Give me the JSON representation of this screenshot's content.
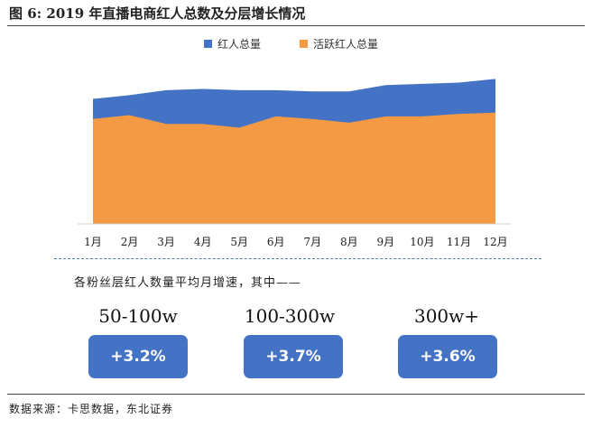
{
  "title": "图 6:  2019 年直播电商红人总数及分层增长情况",
  "chart_data": {
    "type": "area",
    "categories": [
      "1月",
      "2月",
      "3月",
      "4月",
      "5月",
      "6月",
      "7月",
      "8月",
      "9月",
      "10月",
      "11月",
      "12月"
    ],
    "series": [
      {
        "name": "红人总量",
        "color": "#4472c4",
        "values": [
          100,
          103,
          107,
          108,
          107,
          107,
          106,
          106,
          111,
          112,
          113,
          116
        ]
      },
      {
        "name": "活跃红人总量",
        "color": "#f59a44",
        "values": [
          84,
          87,
          80,
          80,
          77,
          86,
          84,
          81,
          86,
          86,
          88,
          89
        ]
      }
    ],
    "ylim": [
      0,
      130
    ],
    "legend": "top-center",
    "grid": false
  },
  "growth_note": "各粉丝层红人数量平均月增速，其中——",
  "tiers": [
    {
      "label": "50-100w",
      "value": "+3.2%"
    },
    {
      "label": "100-300w",
      "value": "+3.7%"
    },
    {
      "label": "300w+",
      "value": "+3.6%"
    }
  ],
  "source": "数据来源：卡思数据，东北证券"
}
